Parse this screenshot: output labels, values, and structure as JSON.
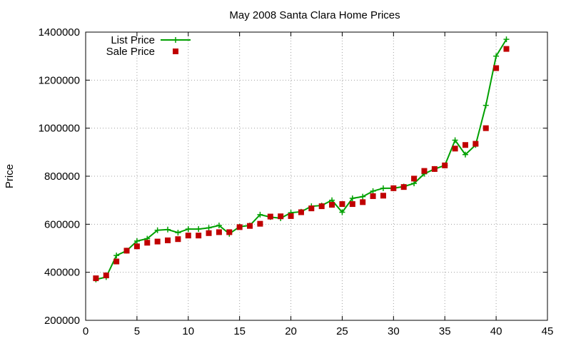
{
  "chart_data": {
    "type": "line",
    "title": "May 2008 Santa Clara Home Prices",
    "xlabel": "",
    "ylabel": "Price",
    "xlim": [
      0,
      45
    ],
    "ylim": [
      200000,
      1400000
    ],
    "x_ticks": [
      0,
      5,
      10,
      15,
      20,
      25,
      30,
      35,
      40,
      45
    ],
    "y_ticks": [
      200000,
      400000,
      600000,
      800000,
      1000000,
      1200000,
      1400000
    ],
    "x_tick_labels": [
      "0",
      "5",
      "10",
      "15",
      "20",
      "25",
      "30",
      "35",
      "40",
      "45"
    ],
    "y_tick_labels": [
      "200000",
      "400000",
      "600000",
      "800000",
      "1000000",
      "1200000",
      "1400000"
    ],
    "grid": true,
    "legend_position": "top-left",
    "series": [
      {
        "name": "List Price",
        "style": "line-plus",
        "color": "#00a000",
        "x": [
          1,
          2,
          3,
          4,
          5,
          6,
          7,
          8,
          9,
          10,
          11,
          12,
          13,
          14,
          15,
          16,
          17,
          18,
          19,
          20,
          21,
          22,
          23,
          24,
          25,
          26,
          27,
          28,
          29,
          30,
          31,
          32,
          33,
          34,
          35,
          36,
          37,
          38,
          39,
          40,
          41
        ],
        "y": [
          370000,
          380000,
          470000,
          490000,
          530000,
          540000,
          575000,
          578000,
          565000,
          580000,
          580000,
          585000,
          595000,
          560000,
          590000,
          595000,
          640000,
          630000,
          625000,
          648000,
          652000,
          675000,
          678000,
          700000,
          650000,
          708000,
          715000,
          738000,
          750000,
          750000,
          757000,
          770000,
          810000,
          830000,
          845000,
          950000,
          890000,
          930000,
          1095000,
          1300000,
          1370000
        ]
      },
      {
        "name": "Sale Price",
        "style": "square-markers",
        "color": "#c00000",
        "x": [
          1,
          2,
          3,
          4,
          5,
          6,
          7,
          8,
          9,
          10,
          11,
          12,
          13,
          14,
          15,
          16,
          17,
          18,
          19,
          20,
          21,
          22,
          23,
          24,
          25,
          26,
          27,
          28,
          29,
          30,
          31,
          32,
          33,
          34,
          35,
          36,
          37,
          38,
          39,
          40,
          41
        ],
        "y": [
          375000,
          387000,
          445000,
          490000,
          508000,
          523000,
          528000,
          533000,
          538000,
          553000,
          553000,
          563000,
          567000,
          567000,
          588000,
          593000,
          602000,
          632000,
          633000,
          634000,
          650000,
          666000,
          675000,
          681000,
          684000,
          684000,
          692000,
          717000,
          719000,
          750000,
          755000,
          790000,
          822000,
          830000,
          845000,
          915000,
          930000,
          935000,
          1000000,
          1250000,
          1330000
        ]
      }
    ]
  }
}
